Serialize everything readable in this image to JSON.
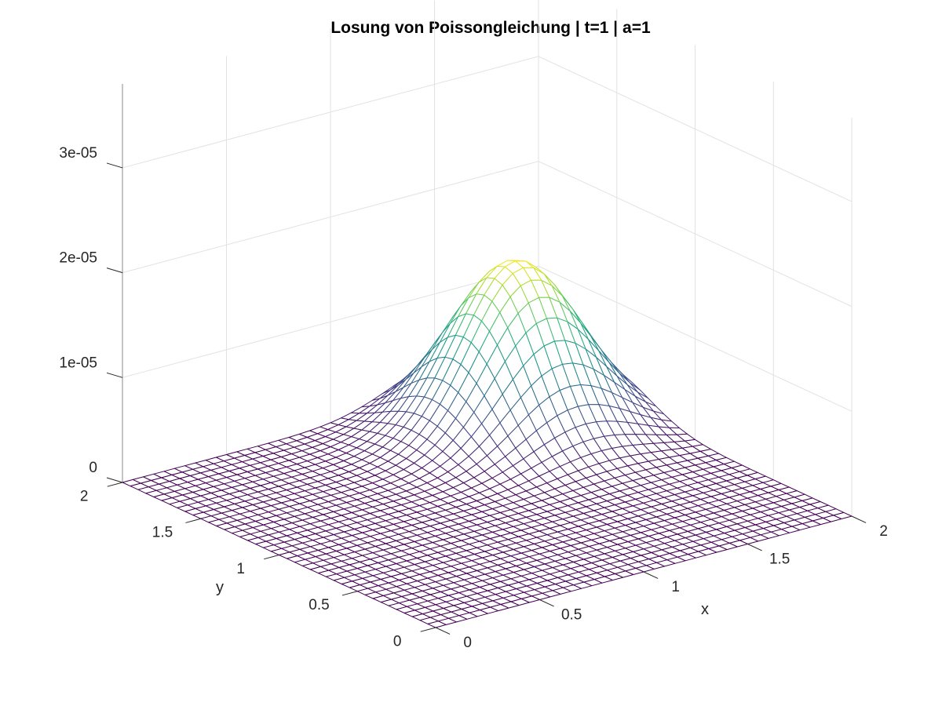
{
  "chart_data": {
    "type": "surface",
    "title": "Losung von Poissongleichung | t=1 | a=1",
    "xlabel": "x",
    "ylabel": "y",
    "zlabel": "",
    "xlim": [
      0,
      2
    ],
    "ylim": [
      0,
      2
    ],
    "zlim": [
      0,
      3.8e-05
    ],
    "x_ticks": [
      {
        "value": 0,
        "label": "0"
      },
      {
        "value": 0.5,
        "label": "0.5"
      },
      {
        "value": 1,
        "label": "1"
      },
      {
        "value": 1.5,
        "label": "1.5"
      },
      {
        "value": 2,
        "label": "2"
      }
    ],
    "y_ticks": [
      {
        "value": 0,
        "label": "0"
      },
      {
        "value": 0.5,
        "label": "0.5"
      },
      {
        "value": 1,
        "label": "1"
      },
      {
        "value": 1.5,
        "label": "1.5"
      },
      {
        "value": 2,
        "label": "2"
      }
    ],
    "z_ticks": [
      {
        "value": 0,
        "label": "0"
      },
      {
        "value": 1e-05,
        "label": "1e-05"
      },
      {
        "value": 2e-05,
        "label": "2e-05"
      },
      {
        "value": 3e-05,
        "label": "3e-05"
      }
    ],
    "grid": true,
    "colormap": "viridis",
    "surface": {
      "function": "gaussian-bump",
      "peak_value": 1.6e-05,
      "peak_x": 1.55,
      "peak_y": 1.55,
      "spread_x": 0.26,
      "spread_y": 0.26,
      "grid_points": 41
    }
  }
}
